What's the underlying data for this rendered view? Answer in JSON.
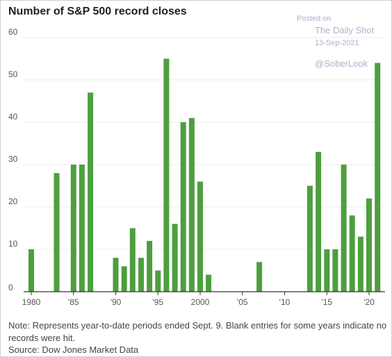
{
  "chart_data": {
    "type": "bar",
    "title": "Number of S&P 500 record closes",
    "xlabel": "",
    "ylabel": "",
    "ylim": [
      0,
      60
    ],
    "yticks": [
      0,
      10,
      20,
      30,
      40,
      50,
      60
    ],
    "x": [
      1980,
      1981,
      1982,
      1983,
      1984,
      1985,
      1986,
      1987,
      1988,
      1989,
      1990,
      1991,
      1992,
      1993,
      1994,
      1995,
      1996,
      1997,
      1998,
      1999,
      2000,
      2001,
      2002,
      2003,
      2004,
      2005,
      2006,
      2007,
      2008,
      2009,
      2010,
      2011,
      2012,
      2013,
      2014,
      2015,
      2016,
      2017,
      2018,
      2019,
      2020,
      2021
    ],
    "values": [
      10,
      0,
      0,
      28,
      0,
      30,
      30,
      47,
      0,
      0,
      8,
      6,
      15,
      8,
      12,
      5,
      55,
      16,
      40,
      41,
      26,
      4,
      0,
      0,
      0,
      0,
      0,
      7,
      0,
      0,
      0,
      0,
      0,
      25,
      33,
      10,
      10,
      30,
      18,
      13,
      22,
      54
    ],
    "xtick_labels": [
      {
        "year": 1980,
        "label": "1980"
      },
      {
        "year": 1985,
        "label": "'85"
      },
      {
        "year": 1990,
        "label": "'90"
      },
      {
        "year": 1995,
        "label": "'95"
      },
      {
        "year": 2000,
        "label": "2000"
      },
      {
        "year": 2005,
        "label": "'05"
      },
      {
        "year": 2010,
        "label": "'10"
      },
      {
        "year": 2015,
        "label": "'15"
      },
      {
        "year": 2020,
        "label": "'20"
      }
    ],
    "grid": true,
    "bar_color": "#4e9e3f"
  },
  "watermark": {
    "posted": "Posted on",
    "source": "The Daily Shot",
    "date": "13-Sep-2021",
    "handle": "@SoberLook"
  },
  "footer": {
    "note": "Note: Represents year-to-date periods ended Sept. 9. Blank entries for some years indicate no records were hit.",
    "source": "Source: Dow Jones Market Data"
  }
}
